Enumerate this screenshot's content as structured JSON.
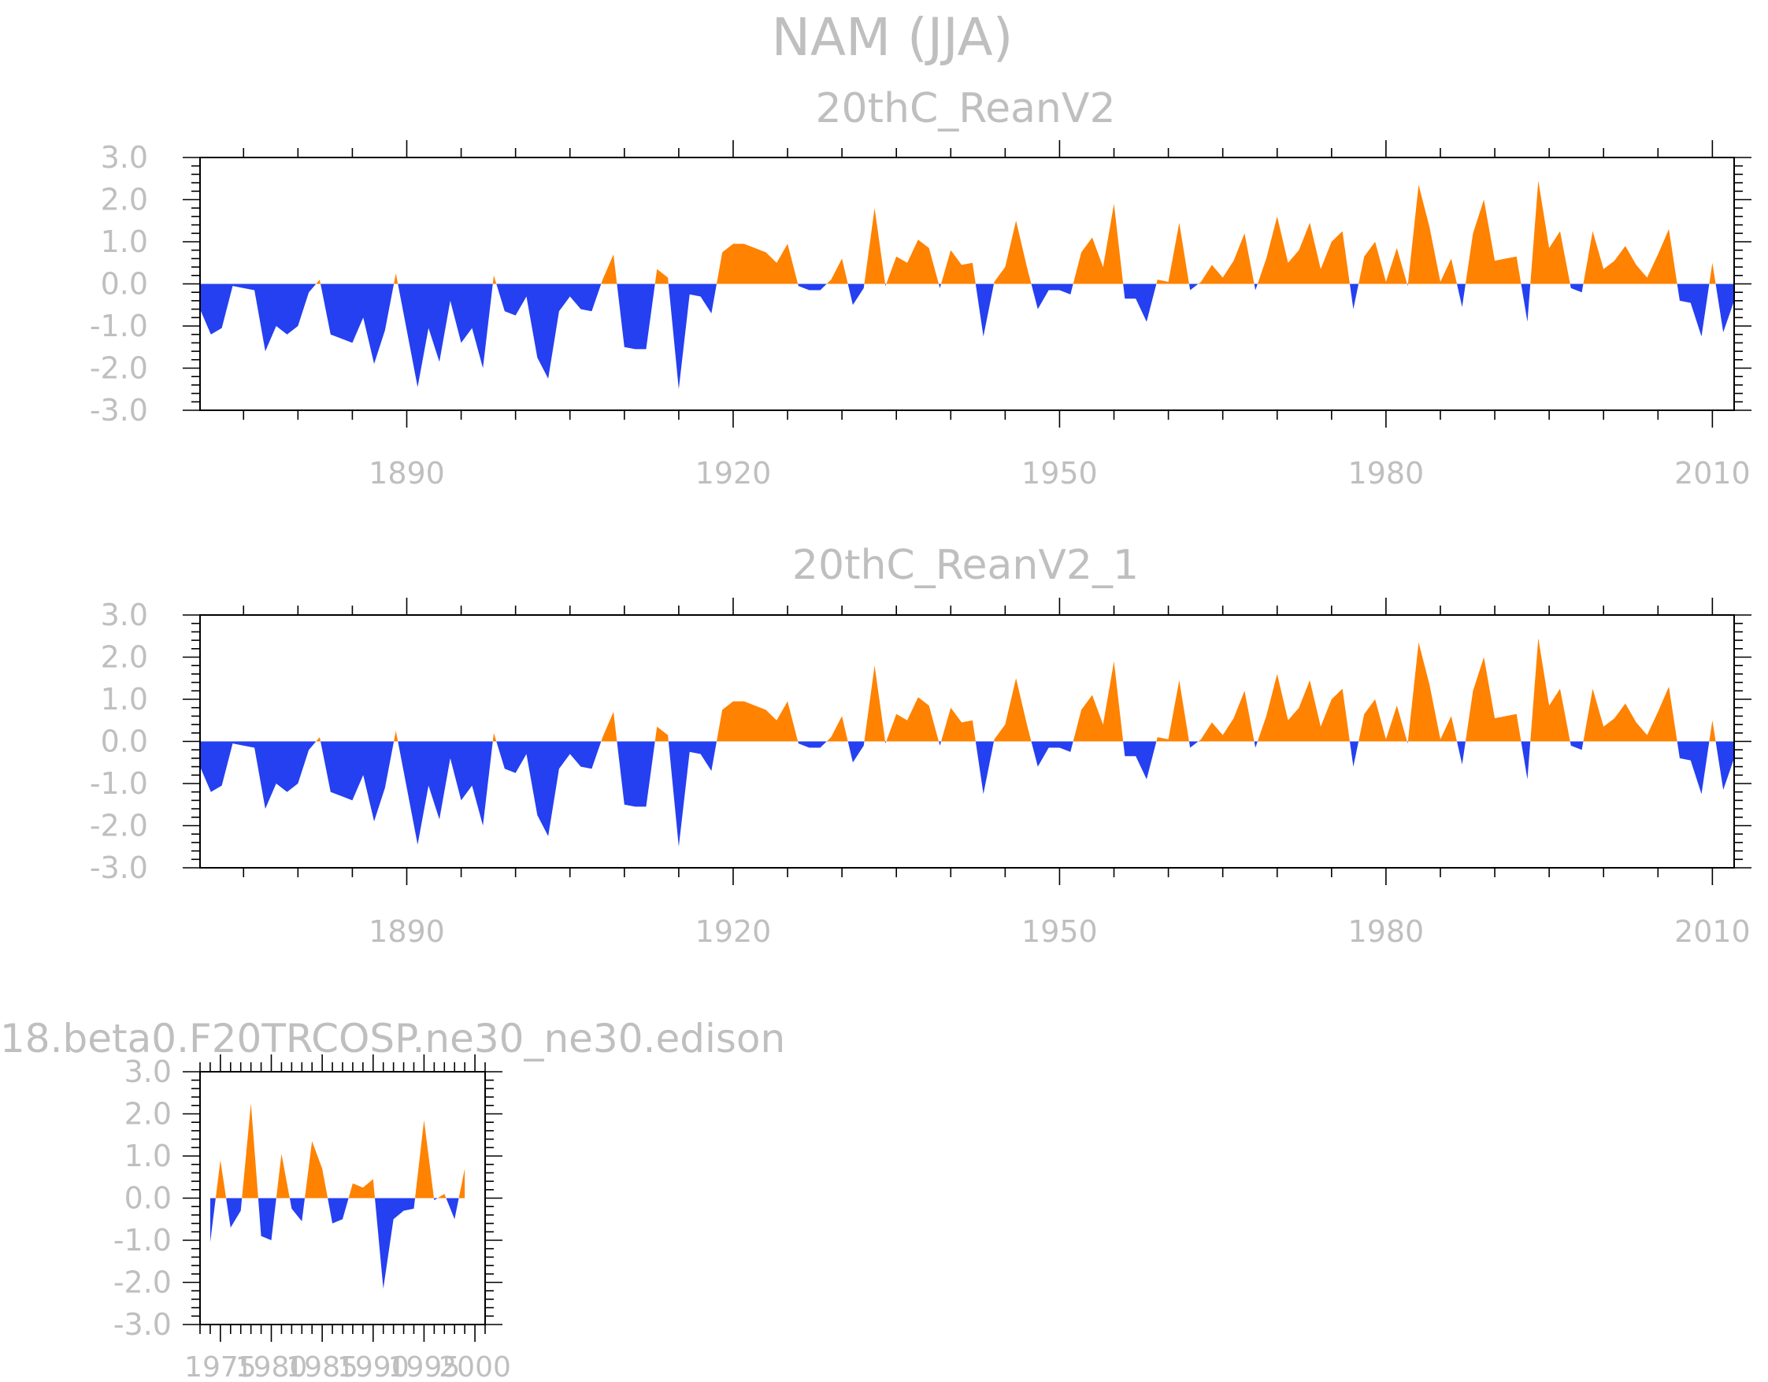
{
  "figure_title": "NAM (JJA)",
  "colors": {
    "positive": "#ff8200",
    "negative": "#2540f0",
    "text": "#bfbfbf",
    "axis": "#000000"
  },
  "chart_data": [
    {
      "type": "area",
      "title": "20thC_ReanV2",
      "xlabel": "",
      "ylabel": "",
      "xlim": [
        1871,
        2012
      ],
      "ylim": [
        -3,
        3
      ],
      "xticks": [
        1890,
        1920,
        1950,
        1980,
        2010
      ],
      "xtick_labels": [
        "1890",
        "1920",
        "1950",
        "1980",
        "2010"
      ],
      "yticks": [
        -3,
        -2,
        -1,
        0,
        1,
        2,
        3
      ],
      "ytick_labels": [
        "-3.0",
        "-2.0",
        "-1.0",
        "0.0",
        "1.0",
        "2.0",
        "3.0"
      ],
      "x_start": 1871,
      "values": [
        -0.6,
        -1.2,
        -1.05,
        -0.05,
        -0.1,
        -0.15,
        -1.6,
        -1.0,
        -1.2,
        -1.0,
        -0.2,
        0.1,
        -1.2,
        -1.3,
        -1.4,
        -0.8,
        -1.9,
        -1.1,
        0.25,
        -1.1,
        -2.45,
        -1.05,
        -1.85,
        -0.4,
        -1.4,
        -1.05,
        -2.0,
        0.2,
        -0.65,
        -0.75,
        -0.3,
        -1.75,
        -2.25,
        -0.65,
        -0.3,
        -0.6,
        -0.65,
        0.1,
        0.7,
        -1.5,
        -1.55,
        -1.55,
        0.35,
        0.15,
        -2.5,
        -0.25,
        -0.3,
        -0.7,
        0.75,
        0.95,
        0.95,
        0.85,
        0.75,
        0.5,
        0.95,
        -0.05,
        -0.15,
        -0.15,
        0.1,
        0.6,
        -0.5,
        -0.1,
        1.8,
        -0.05,
        0.65,
        0.5,
        1.05,
        0.85,
        -0.1,
        0.8,
        0.45,
        0.5,
        -1.25,
        0.05,
        0.4,
        1.5,
        0.4,
        -0.6,
        -0.15,
        -0.15,
        -0.25,
        0.75,
        1.1,
        0.4,
        1.9,
        -0.35,
        -0.35,
        -0.9,
        0.1,
        0.05,
        1.45,
        -0.15,
        0.05,
        0.45,
        0.15,
        0.55,
        1.2,
        -0.15,
        0.6,
        1.6,
        0.5,
        0.8,
        1.45,
        0.35,
        1.0,
        1.25,
        -0.6,
        0.65,
        1.0,
        0.05,
        0.85,
        -0.05,
        2.35,
        1.35,
        0.05,
        0.6,
        -0.55,
        1.2,
        2.0,
        0.55,
        0.6,
        0.65,
        -0.9,
        2.45,
        0.85,
        1.25,
        -0.1,
        -0.2,
        1.25,
        0.35,
        0.55,
        0.9,
        0.45,
        0.15,
        0.7,
        1.3,
        -0.4,
        -0.45,
        -1.25,
        0.5,
        -1.15,
        -0.4
      ]
    },
    {
      "type": "area",
      "title": "20thC_ReanV2_1",
      "xlabel": "",
      "ylabel": "",
      "xlim": [
        1871,
        2012
      ],
      "ylim": [
        -3,
        3
      ],
      "xticks": [
        1890,
        1920,
        1950,
        1980,
        2010
      ],
      "xtick_labels": [
        "1890",
        "1920",
        "1950",
        "1980",
        "2010"
      ],
      "yticks": [
        -3,
        -2,
        -1,
        0,
        1,
        2,
        3
      ],
      "ytick_labels": [
        "-3.0",
        "-2.0",
        "-1.0",
        "0.0",
        "1.0",
        "2.0",
        "3.0"
      ],
      "x_start": 1871,
      "values": [
        -0.6,
        -1.2,
        -1.05,
        -0.05,
        -0.1,
        -0.15,
        -1.6,
        -1.0,
        -1.2,
        -1.0,
        -0.2,
        0.1,
        -1.2,
        -1.3,
        -1.4,
        -0.8,
        -1.9,
        -1.1,
        0.25,
        -1.1,
        -2.45,
        -1.05,
        -1.85,
        -0.4,
        -1.4,
        -1.05,
        -2.0,
        0.2,
        -0.65,
        -0.75,
        -0.3,
        -1.75,
        -2.25,
        -0.65,
        -0.3,
        -0.6,
        -0.65,
        0.1,
        0.7,
        -1.5,
        -1.55,
        -1.55,
        0.35,
        0.15,
        -2.5,
        -0.25,
        -0.3,
        -0.7,
        0.75,
        0.95,
        0.95,
        0.85,
        0.75,
        0.5,
        0.95,
        -0.05,
        -0.15,
        -0.15,
        0.1,
        0.6,
        -0.5,
        -0.1,
        1.8,
        -0.05,
        0.65,
        0.5,
        1.05,
        0.85,
        -0.1,
        0.8,
        0.45,
        0.5,
        -1.25,
        0.05,
        0.4,
        1.5,
        0.4,
        -0.6,
        -0.15,
        -0.15,
        -0.25,
        0.75,
        1.1,
        0.4,
        1.9,
        -0.35,
        -0.35,
        -0.9,
        0.1,
        0.05,
        1.45,
        -0.15,
        0.05,
        0.45,
        0.15,
        0.55,
        1.2,
        -0.15,
        0.6,
        1.6,
        0.5,
        0.8,
        1.45,
        0.35,
        1.0,
        1.25,
        -0.6,
        0.65,
        1.0,
        0.05,
        0.85,
        -0.05,
        2.35,
        1.35,
        0.05,
        0.6,
        -0.55,
        1.2,
        2.0,
        0.55,
        0.6,
        0.65,
        -0.9,
        2.45,
        0.85,
        1.25,
        -0.1,
        -0.2,
        1.25,
        0.35,
        0.55,
        0.9,
        0.45,
        0.15,
        0.7,
        1.3,
        -0.4,
        -0.45,
        -1.25,
        0.5,
        -1.15,
        -0.4
      ]
    },
    {
      "type": "area",
      "title": "18.beta0.F20TRCOSP.ne30_ne30.edison",
      "xlabel": "",
      "ylabel": "",
      "xlim": [
        1973,
        2001
      ],
      "ylim": [
        -3,
        3
      ],
      "xticks": [
        1975,
        1980,
        1985,
        1990,
        1995,
        2000
      ],
      "xtick_labels": [
        "1975",
        "1980",
        "1985",
        "1990",
        "1995",
        "2000"
      ],
      "yticks": [
        -3,
        -2,
        -1,
        0,
        1,
        2,
        3
      ],
      "ytick_labels": [
        "-3.0",
        "-2.0",
        "-1.0",
        "0.0",
        "1.0",
        "2.0",
        "3.0"
      ],
      "x_start": 1974,
      "values": [
        -1.05,
        0.9,
        -0.7,
        -0.3,
        2.25,
        -0.9,
        -1.0,
        1.05,
        -0.25,
        -0.55,
        1.35,
        0.7,
        -0.6,
        -0.5,
        0.35,
        0.25,
        0.45,
        -2.15,
        -0.5,
        -0.3,
        -0.25,
        1.85,
        -0.05,
        0.1,
        -0.5,
        0.7
      ]
    }
  ]
}
